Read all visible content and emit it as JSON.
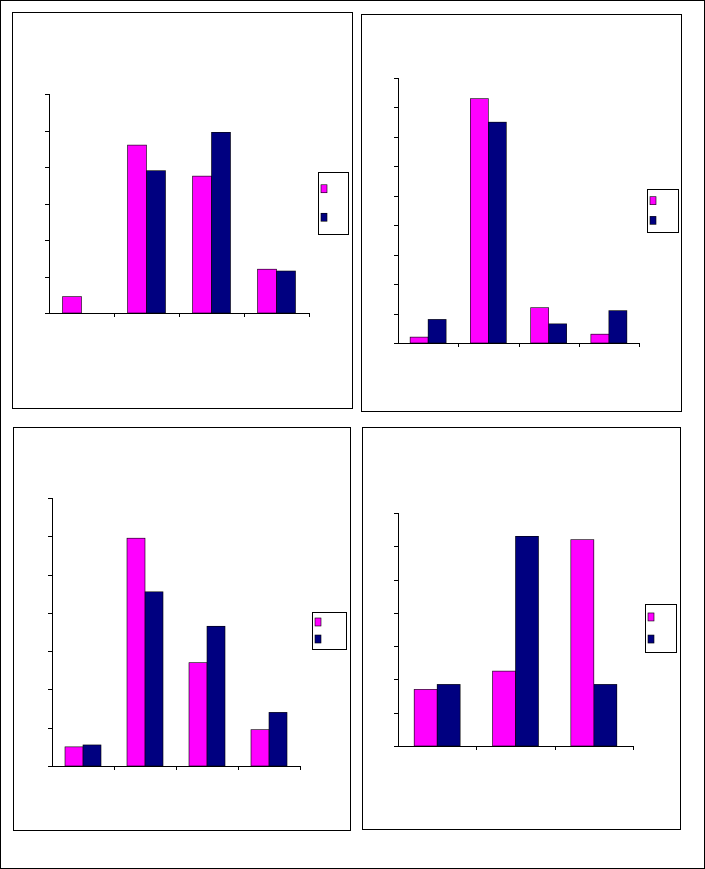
{
  "colors": {
    "series_a": "#FF00FF",
    "series_b": "#000080",
    "axis": "#000000",
    "panel_border": "#000000",
    "background": "#FFFFFF"
  },
  "chart_data": [
    {
      "type": "bar",
      "title": "",
      "xlabel": "",
      "ylabel": "",
      "categories": [
        "",
        "",
        "",
        ""
      ],
      "series": [
        {
          "values": [
            0.45,
            4.6,
            3.75,
            1.2
          ]
        },
        {
          "values": [
            0,
            3.9,
            4.95,
            1.15
          ]
        }
      ],
      "ylim": [
        0,
        6
      ],
      "y_ticks": 6,
      "grid": false,
      "legend": "right"
    },
    {
      "type": "bar",
      "title": "",
      "xlabel": "",
      "ylabel": "",
      "categories": [
        "",
        "",
        "",
        ""
      ],
      "series": [
        {
          "values": [
            0.2,
            8.3,
            1.2,
            0.3
          ]
        },
        {
          "values": [
            0.8,
            7.5,
            0.65,
            1.1
          ]
        }
      ],
      "ylim": [
        0,
        9
      ],
      "y_ticks": 9,
      "grid": false,
      "legend": "right"
    },
    {
      "type": "bar",
      "title": "",
      "xlabel": "",
      "ylabel": "",
      "categories": [
        "",
        "",
        "",
        ""
      ],
      "series": [
        {
          "values": [
            0.5,
            5.95,
            2.7,
            0.95
          ]
        },
        {
          "values": [
            0.55,
            4.55,
            3.65,
            1.4
          ]
        }
      ],
      "ylim": [
        0,
        7
      ],
      "y_ticks": 7,
      "grid": false,
      "legend": "right"
    },
    {
      "type": "bar",
      "title": "",
      "xlabel": "",
      "ylabel": "",
      "categories": [
        "",
        "",
        ""
      ],
      "series": [
        {
          "values": [
            1.7,
            2.25,
            6.2
          ]
        },
        {
          "values": [
            1.85,
            6.3,
            1.85
          ]
        }
      ],
      "ylim": [
        0,
        7
      ],
      "y_ticks": 7,
      "grid": false,
      "legend": "right"
    }
  ]
}
